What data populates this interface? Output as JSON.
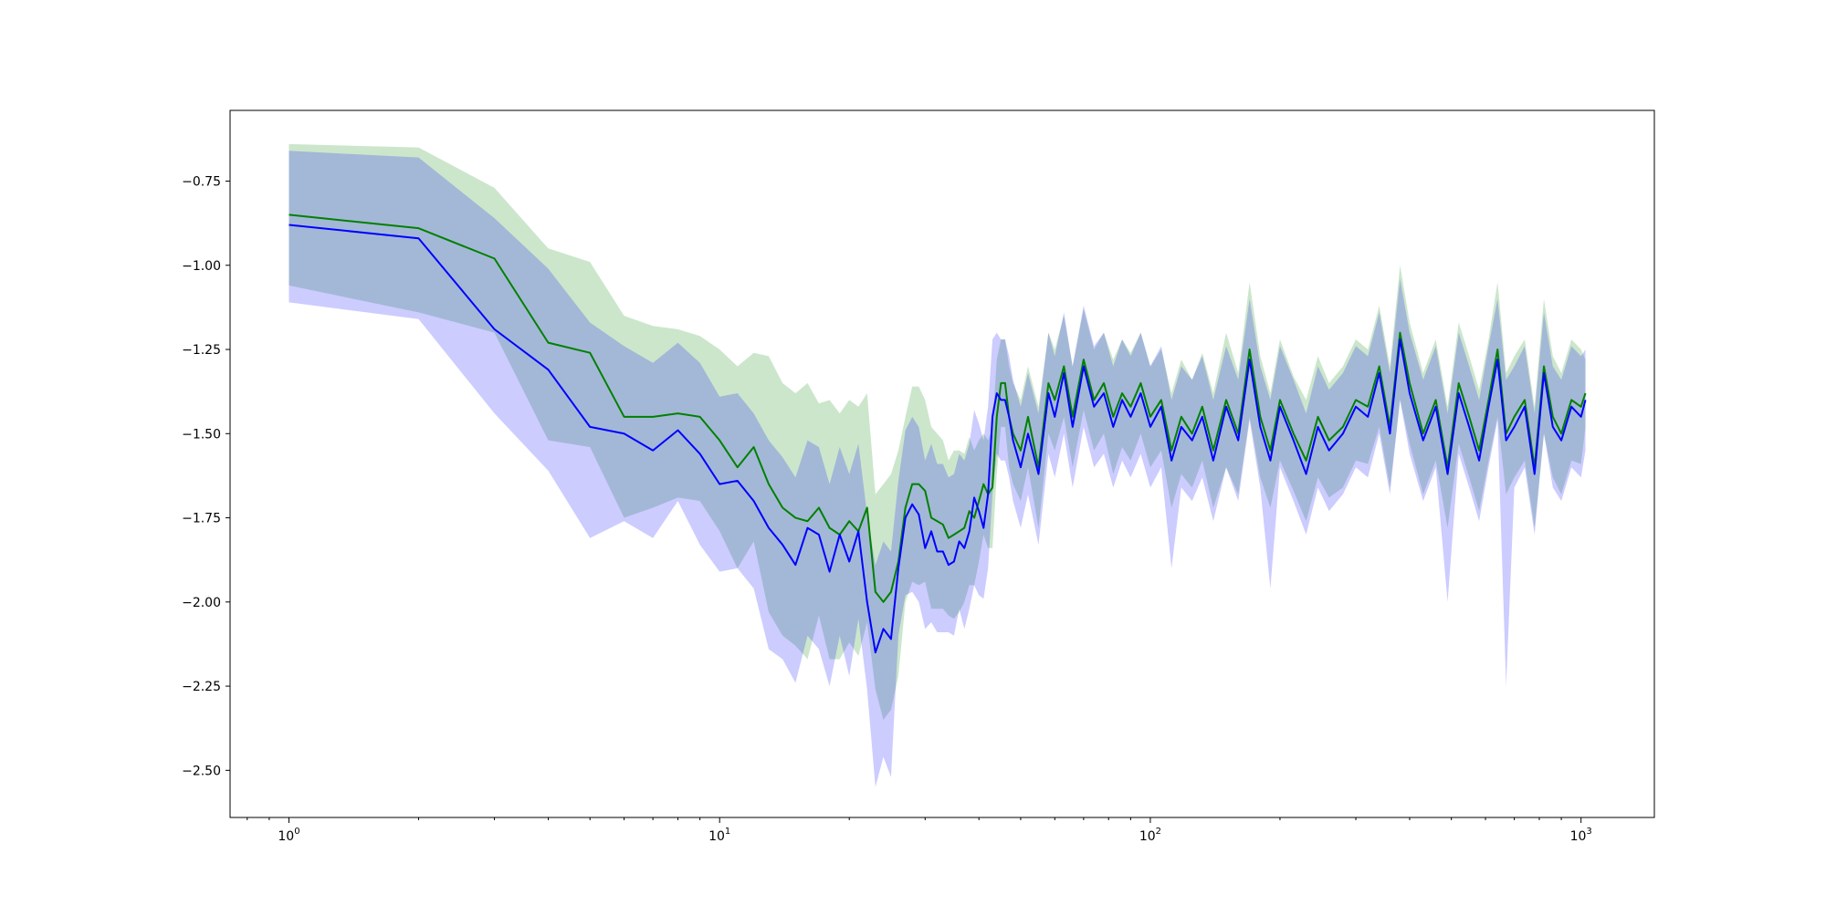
{
  "chart_data": {
    "type": "line",
    "title": "",
    "xlabel": "",
    "ylabel": "",
    "xscale": "log",
    "xlim": [
      0.73,
      1480
    ],
    "ylim": [
      -2.64,
      -0.54
    ],
    "grid": false,
    "legend": "none",
    "x_ticks": [
      {
        "value": 1,
        "base": "10",
        "exp": "0"
      },
      {
        "value": 10,
        "base": "10",
        "exp": "1"
      },
      {
        "value": 100,
        "base": "10",
        "exp": "2"
      },
      {
        "value": 1000,
        "base": "10",
        "exp": "3"
      }
    ],
    "y_ticks": [
      {
        "value": -0.75,
        "label": "−0.75"
      },
      {
        "value": -1.0,
        "label": "−1.00"
      },
      {
        "value": -1.25,
        "label": "−1.25"
      },
      {
        "value": -1.5,
        "label": "−1.50"
      },
      {
        "value": -1.75,
        "label": "−1.75"
      },
      {
        "value": -2.0,
        "label": "−2.00"
      },
      {
        "value": -2.25,
        "label": "−2.25"
      },
      {
        "value": -2.5,
        "label": "−2.50"
      }
    ],
    "series": [
      {
        "color": "#008000",
        "band_color": "#008000",
        "band_opacity": 0.2,
        "x": [
          1,
          2,
          3,
          4,
          5,
          6,
          7,
          8,
          9,
          10,
          11,
          12,
          13,
          14,
          15,
          16,
          17,
          18,
          19,
          20,
          21,
          22,
          23,
          24,
          25,
          26,
          27,
          28,
          29,
          30,
          31,
          32,
          33,
          34,
          35,
          36,
          37,
          38,
          39,
          40,
          41,
          42,
          43,
          44,
          45,
          46,
          47,
          48,
          50,
          52,
          55,
          58,
          60,
          63,
          66,
          70,
          74,
          78,
          82,
          86,
          90,
          95,
          100,
          106,
          112,
          118,
          125,
          132,
          140,
          150,
          160,
          170,
          180,
          190,
          200,
          215,
          230,
          245,
          260,
          280,
          300,
          320,
          340,
          360,
          380,
          400,
          430,
          460,
          490,
          520,
          550,
          580,
          610,
          640,
          670,
          700,
          740,
          780,
          820,
          860,
          900,
          950,
          1000,
          1024
        ],
        "y": [
          -0.85,
          -0.89,
          -0.98,
          -1.23,
          -1.26,
          -1.45,
          -1.45,
          -1.44,
          -1.45,
          -1.52,
          -1.6,
          -1.54,
          -1.65,
          -1.72,
          -1.75,
          -1.76,
          -1.72,
          -1.78,
          -1.8,
          -1.76,
          -1.79,
          -1.72,
          -1.97,
          -2.0,
          -1.97,
          -1.88,
          -1.72,
          -1.65,
          -1.65,
          -1.67,
          -1.75,
          -1.76,
          -1.77,
          -1.81,
          -1.8,
          -1.79,
          -1.78,
          -1.73,
          -1.75,
          -1.7,
          -1.65,
          -1.68,
          -1.66,
          -1.45,
          -1.35,
          -1.35,
          -1.45,
          -1.5,
          -1.55,
          -1.45,
          -1.6,
          -1.35,
          -1.4,
          -1.3,
          -1.45,
          -1.28,
          -1.4,
          -1.35,
          -1.45,
          -1.38,
          -1.42,
          -1.35,
          -1.45,
          -1.4,
          -1.55,
          -1.45,
          -1.5,
          -1.42,
          -1.55,
          -1.4,
          -1.5,
          -1.25,
          -1.45,
          -1.55,
          -1.4,
          -1.5,
          -1.58,
          -1.45,
          -1.52,
          -1.48,
          -1.4,
          -1.42,
          -1.3,
          -1.48,
          -1.2,
          -1.35,
          -1.5,
          -1.4,
          -1.6,
          -1.35,
          -1.45,
          -1.55,
          -1.4,
          -1.25,
          -1.5,
          -1.45,
          -1.4,
          -1.6,
          -1.3,
          -1.45,
          -1.5,
          -1.4,
          -1.42,
          -1.38
        ],
        "upper": [
          -0.64,
          -0.65,
          -0.77,
          -0.95,
          -0.99,
          -1.15,
          -1.18,
          -1.19,
          -1.21,
          -1.25,
          -1.3,
          -1.26,
          -1.27,
          -1.35,
          -1.38,
          -1.35,
          -1.41,
          -1.4,
          -1.44,
          -1.4,
          -1.42,
          -1.38,
          -1.68,
          -1.65,
          -1.62,
          -1.55,
          -1.45,
          -1.36,
          -1.36,
          -1.4,
          -1.48,
          -1.5,
          -1.52,
          -1.58,
          -1.55,
          -1.55,
          -1.56,
          -1.51,
          -1.55,
          -1.52,
          -1.5,
          -1.52,
          -1.48,
          -1.28,
          -1.22,
          -1.22,
          -1.3,
          -1.35,
          -1.4,
          -1.3,
          -1.42,
          -1.2,
          -1.25,
          -1.15,
          -1.3,
          -1.13,
          -1.25,
          -1.2,
          -1.28,
          -1.22,
          -1.26,
          -1.2,
          -1.3,
          -1.25,
          -1.38,
          -1.28,
          -1.34,
          -1.26,
          -1.38,
          -1.2,
          -1.32,
          -1.05,
          -1.27,
          -1.38,
          -1.22,
          -1.33,
          -1.4,
          -1.27,
          -1.35,
          -1.3,
          -1.22,
          -1.25,
          -1.12,
          -1.3,
          -1.0,
          -1.17,
          -1.32,
          -1.22,
          -1.42,
          -1.17,
          -1.27,
          -1.37,
          -1.22,
          -1.05,
          -1.32,
          -1.27,
          -1.22,
          -1.42,
          -1.1,
          -1.27,
          -1.32,
          -1.22,
          -1.25,
          -1.28
        ],
        "lower": [
          -1.06,
          -1.14,
          -1.2,
          -1.52,
          -1.54,
          -1.75,
          -1.72,
          -1.69,
          -1.7,
          -1.79,
          -1.9,
          -1.82,
          -2.03,
          -2.1,
          -2.13,
          -2.17,
          -2.04,
          -2.17,
          -2.17,
          -2.12,
          -2.16,
          -2.06,
          -2.26,
          -2.35,
          -2.32,
          -2.22,
          -2.0,
          -1.94,
          -1.95,
          -1.94,
          -2.02,
          -2.02,
          -2.02,
          -2.04,
          -2.05,
          -2.03,
          -2.0,
          -1.95,
          -1.95,
          -1.88,
          -1.8,
          -1.84,
          -1.84,
          -1.62,
          -1.48,
          -1.48,
          -1.6,
          -1.65,
          -1.7,
          -1.6,
          -1.78,
          -1.5,
          -1.55,
          -1.45,
          -1.6,
          -1.43,
          -1.55,
          -1.5,
          -1.62,
          -1.54,
          -1.58,
          -1.5,
          -1.6,
          -1.55,
          -1.72,
          -1.62,
          -1.66,
          -1.58,
          -1.72,
          -1.6,
          -1.68,
          -1.45,
          -1.63,
          -1.72,
          -1.58,
          -1.67,
          -1.76,
          -1.63,
          -1.69,
          -1.66,
          -1.58,
          -1.59,
          -1.48,
          -1.66,
          -1.4,
          -1.53,
          -1.68,
          -1.58,
          -1.78,
          -1.53,
          -1.63,
          -1.73,
          -1.58,
          -1.45,
          -1.68,
          -1.63,
          -1.58,
          -1.78,
          -1.5,
          -1.63,
          -1.68,
          -1.58,
          -1.59,
          -1.48
        ]
      },
      {
        "color": "#0000ff",
        "band_color": "#0000ff",
        "band_opacity": 0.2,
        "x": [
          1,
          2,
          3,
          4,
          5,
          6,
          7,
          8,
          9,
          10,
          11,
          12,
          13,
          14,
          15,
          16,
          17,
          18,
          19,
          20,
          21,
          22,
          23,
          24,
          25,
          26,
          27,
          28,
          29,
          30,
          31,
          32,
          33,
          34,
          35,
          36,
          37,
          38,
          39,
          40,
          41,
          42,
          43,
          44,
          45,
          46,
          47,
          48,
          50,
          52,
          55,
          58,
          60,
          63,
          66,
          70,
          74,
          78,
          82,
          86,
          90,
          95,
          100,
          106,
          112,
          118,
          125,
          132,
          140,
          150,
          160,
          170,
          180,
          190,
          200,
          215,
          230,
          245,
          260,
          280,
          300,
          320,
          340,
          360,
          380,
          400,
          430,
          460,
          490,
          520,
          550,
          580,
          610,
          640,
          670,
          700,
          740,
          780,
          820,
          860,
          900,
          950,
          1000,
          1024
        ],
        "y": [
          -0.88,
          -0.92,
          -1.19,
          -1.31,
          -1.48,
          -1.5,
          -1.55,
          -1.49,
          -1.56,
          -1.65,
          -1.64,
          -1.7,
          -1.78,
          -1.83,
          -1.89,
          -1.78,
          -1.8,
          -1.91,
          -1.8,
          -1.88,
          -1.79,
          -2.0,
          -2.15,
          -2.08,
          -2.11,
          -1.9,
          -1.75,
          -1.71,
          -1.74,
          -1.84,
          -1.79,
          -1.85,
          -1.85,
          -1.89,
          -1.88,
          -1.82,
          -1.84,
          -1.79,
          -1.69,
          -1.73,
          -1.78,
          -1.68,
          -1.45,
          -1.38,
          -1.4,
          -1.4,
          -1.45,
          -1.52,
          -1.6,
          -1.5,
          -1.62,
          -1.38,
          -1.45,
          -1.32,
          -1.48,
          -1.3,
          -1.42,
          -1.38,
          -1.48,
          -1.4,
          -1.45,
          -1.38,
          -1.48,
          -1.42,
          -1.58,
          -1.48,
          -1.52,
          -1.45,
          -1.58,
          -1.42,
          -1.52,
          -1.28,
          -1.48,
          -1.58,
          -1.42,
          -1.52,
          -1.62,
          -1.48,
          -1.55,
          -1.5,
          -1.42,
          -1.45,
          -1.32,
          -1.5,
          -1.22,
          -1.38,
          -1.52,
          -1.42,
          -1.62,
          -1.38,
          -1.48,
          -1.58,
          -1.42,
          -1.28,
          -1.52,
          -1.48,
          -1.42,
          -1.62,
          -1.32,
          -1.48,
          -1.52,
          -1.42,
          -1.45,
          -1.4
        ],
        "upper": [
          -0.66,
          -0.68,
          -0.86,
          -1.01,
          -1.17,
          -1.24,
          -1.29,
          -1.23,
          -1.29,
          -1.39,
          -1.38,
          -1.44,
          -1.52,
          -1.57,
          -1.63,
          -1.52,
          -1.54,
          -1.65,
          -1.54,
          -1.62,
          -1.53,
          -1.74,
          -1.89,
          -1.82,
          -1.85,
          -1.64,
          -1.49,
          -1.45,
          -1.48,
          -1.58,
          -1.53,
          -1.59,
          -1.59,
          -1.63,
          -1.62,
          -1.56,
          -1.58,
          -1.53,
          -1.43,
          -1.47,
          -1.52,
          -1.42,
          -1.22,
          -1.2,
          -1.22,
          -1.22,
          -1.27,
          -1.34,
          -1.42,
          -1.32,
          -1.44,
          -1.2,
          -1.27,
          -1.14,
          -1.3,
          -1.12,
          -1.24,
          -1.2,
          -1.3,
          -1.22,
          -1.27,
          -1.2,
          -1.3,
          -1.24,
          -1.4,
          -1.3,
          -1.34,
          -1.27,
          -1.4,
          -1.24,
          -1.34,
          -1.1,
          -1.3,
          -1.4,
          -1.24,
          -1.34,
          -1.44,
          -1.3,
          -1.37,
          -1.32,
          -1.24,
          -1.27,
          -1.14,
          -1.32,
          -1.04,
          -1.2,
          -1.34,
          -1.24,
          -1.44,
          -1.2,
          -1.3,
          -1.4,
          -1.24,
          -1.1,
          -1.34,
          -1.3,
          -1.24,
          -1.44,
          -1.14,
          -1.3,
          -1.34,
          -1.24,
          -1.27,
          -1.25
        ],
        "lower": [
          -1.11,
          -1.16,
          -1.44,
          -1.61,
          -1.81,
          -1.76,
          -1.81,
          -1.7,
          -1.83,
          -1.91,
          -1.9,
          -1.96,
          -2.14,
          -2.17,
          -2.24,
          -2.1,
          -2.14,
          -2.25,
          -2.1,
          -2.22,
          -2.05,
          -2.26,
          -2.55,
          -2.46,
          -2.52,
          -2.1,
          -1.98,
          -1.97,
          -2.0,
          -2.08,
          -2.06,
          -2.09,
          -2.09,
          -2.09,
          -2.1,
          -2.02,
          -2.08,
          -2.02,
          -1.95,
          -1.98,
          -1.99,
          -1.9,
          -1.68,
          -1.56,
          -1.58,
          -1.58,
          -1.63,
          -1.7,
          -1.78,
          -1.68,
          -1.83,
          -1.56,
          -1.63,
          -1.5,
          -1.66,
          -1.48,
          -1.6,
          -1.56,
          -1.66,
          -1.58,
          -1.63,
          -1.56,
          -1.66,
          -1.6,
          -1.9,
          -1.66,
          -1.7,
          -1.63,
          -1.76,
          -1.6,
          -1.7,
          -1.46,
          -1.66,
          -1.96,
          -1.6,
          -1.7,
          -1.8,
          -1.66,
          -1.73,
          -1.68,
          -1.6,
          -1.63,
          -1.5,
          -1.68,
          -1.4,
          -1.56,
          -1.7,
          -1.6,
          -2.0,
          -1.56,
          -1.66,
          -1.76,
          -1.6,
          -1.46,
          -2.25,
          -1.66,
          -1.6,
          -1.8,
          -1.5,
          -1.66,
          -1.7,
          -1.6,
          -1.63,
          -1.55
        ]
      }
    ]
  }
}
